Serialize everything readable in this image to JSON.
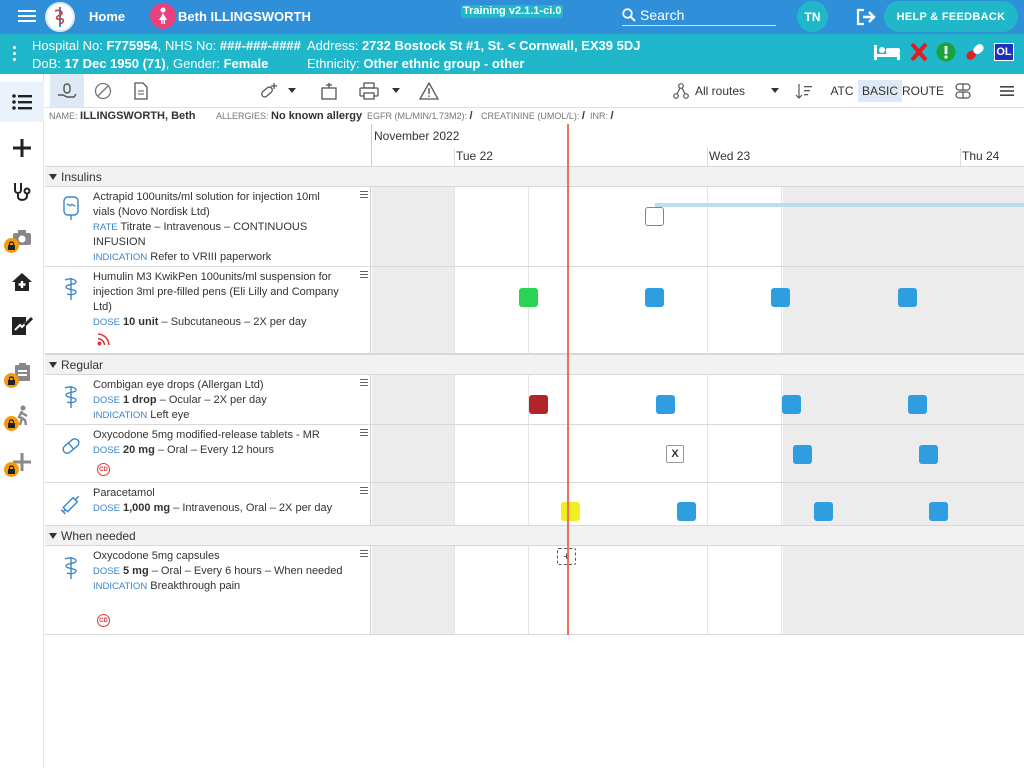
{
  "topbar": {
    "home_label": "Home",
    "patient_name": "Beth ILLINGSWORTH",
    "training_label": "Training v2.1.1-ci.0",
    "search_label": "Search",
    "avatar_initials": "TN",
    "help_label": "HELP & FEEDBACK"
  },
  "banner": {
    "hospital_label": "Hospital No:",
    "hospital_no": "F775954",
    "nhs_label": "NHS No:",
    "nhs_no": "###-###-####",
    "address_label": "Address:",
    "address": "2732 Bostock St #1, St. < Cornwall, EX39 5DJ",
    "dob_label": "DoB:",
    "dob": "17 Dec 1950 (71)",
    "gender_label": "Gender:",
    "gender": "Female",
    "ethnicity_label": "Ethnicity:",
    "ethnicity": "Other ethnic group - other",
    "ol_label": "OL"
  },
  "toolbar": {
    "routes_label": "All routes",
    "atc_label": "ATC",
    "basic_label": "BASIC",
    "route_label": "ROUTE"
  },
  "infostrip": {
    "name_label": "NAME:",
    "name": "ILLINGSWORTH, Beth",
    "allergies_label": "ALLERGIES:",
    "allergies": "No known allergy",
    "egfr_label": "EGFR (ML/MIN/1.73M2):",
    "egfr": "/",
    "creatinine_label": "CREATININE (UMOL/L):",
    "creatinine": "/",
    "inr_label": "INR:",
    "inr": "/"
  },
  "timeline": {
    "month": "November 2022",
    "days": [
      "Tue 22",
      "Wed 23",
      "Thu 24"
    ]
  },
  "groups": {
    "insulins": "Insulins",
    "regular": "Regular",
    "when_needed": "When needed"
  },
  "meds": {
    "actrapid": {
      "name": "Actrapid 100units/ml solution for injection 10ml vials (Novo Nordisk Ltd)",
      "rate_label": "RATE",
      "rate": "Titrate – Intravenous – CONTINUOUS INFUSION",
      "indication_label": "INDICATION",
      "indication": "Refer to VRIII paperwork"
    },
    "humulin": {
      "name": "Humulin M3 KwikPen 100units/ml suspension for injection 3ml pre-filled pens (Eli Lilly and Company Ltd)",
      "dose_label": "DOSE",
      "dose": "10 unit",
      "detail": "– Subcutaneous – 2X per day"
    },
    "combigan": {
      "name": "Combigan eye drops (Allergan Ltd)",
      "dose_label": "DOSE",
      "dose": "1 drop",
      "detail": "– Ocular – 2X per day",
      "indication_label": "INDICATION",
      "indication": "Left eye"
    },
    "oxy_mr": {
      "name": "Oxycodone 5mg modified-release tablets - MR",
      "dose_label": "DOSE",
      "dose": "20 mg",
      "detail": "– Oral – Every 12 hours",
      "cd_label": "CD"
    },
    "paracetamol": {
      "name": "Paracetamol",
      "dose_label": "DOSE",
      "dose": "1,000 mg",
      "detail": "– Intravenous, Oral – 2X per day"
    },
    "oxy_caps": {
      "name": "Oxycodone 5mg capsules",
      "dose_label": "DOSE",
      "dose": "5 mg",
      "detail": "– Oral – Every 6 hours – When needed",
      "indication_label": "INDICATION",
      "indication": "Breakthrough pain",
      "cd_label": "CD"
    }
  },
  "marks": {
    "x_label": "X",
    "plus_label": "+"
  },
  "colors": {
    "topbar": "#2f8fd8",
    "banner": "#1fb7c9",
    "dose_due": "#2f9ee0",
    "dose_given": "#2ad354",
    "dose_missed": "#b0242a",
    "dose_current": "#f1ef1d",
    "now_line": "#e8735a"
  }
}
